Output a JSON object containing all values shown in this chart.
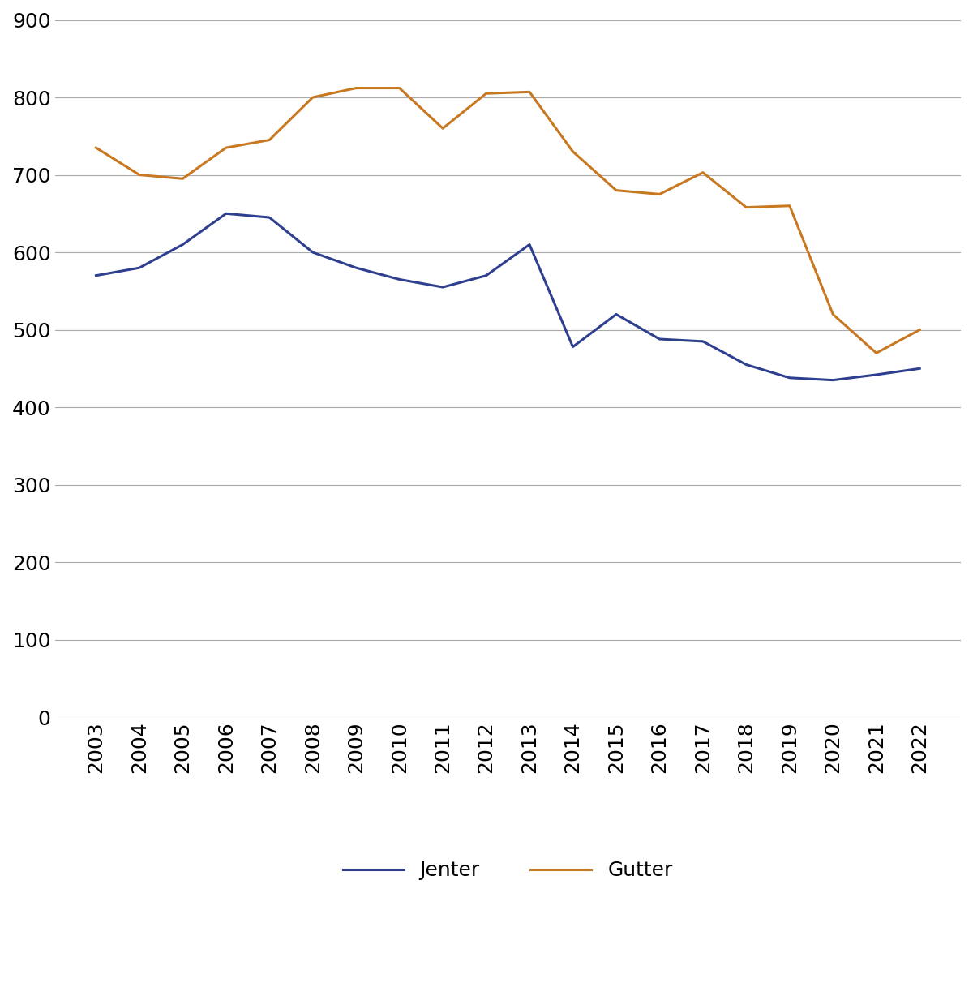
{
  "years": [
    2003,
    2004,
    2005,
    2006,
    2007,
    2008,
    2009,
    2010,
    2011,
    2012,
    2013,
    2014,
    2015,
    2016,
    2017,
    2018,
    2019,
    2020,
    2021,
    2022
  ],
  "jenter": [
    570,
    580,
    610,
    650,
    645,
    600,
    580,
    565,
    555,
    570,
    610,
    478,
    520,
    488,
    485,
    455,
    438,
    435,
    442,
    450
  ],
  "gutter": [
    735,
    700,
    695,
    735,
    745,
    800,
    812,
    812,
    760,
    805,
    807,
    730,
    680,
    675,
    703,
    658,
    660,
    520,
    470,
    500
  ],
  "jenter_label": "Jenter",
  "gutter_label": "Gutter",
  "jenter_color": "#2F3F8F",
  "gutter_color": "#C87820",
  "ylim": [
    0,
    900
  ],
  "yticks": [
    0,
    100,
    200,
    300,
    400,
    500,
    600,
    700,
    800,
    900
  ],
  "line_width": 2.2,
  "background_color": "#ffffff",
  "grid_color": "#aaaaaa",
  "tick_label_fontsize": 18,
  "legend_fontsize": 18,
  "figsize": [
    12.0,
    12.23
  ]
}
